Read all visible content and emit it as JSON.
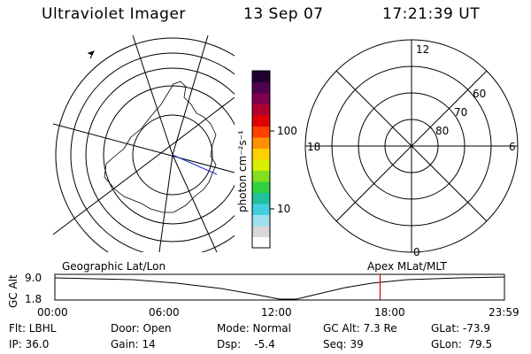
{
  "header": {
    "title": "Ultraviolet Imager",
    "date": "13 Sep 07",
    "time": "17:21:39 UT"
  },
  "colorbar": {
    "unit_label": "photon cm⁻²s⁻¹",
    "tick_100": "100",
    "tick_10": "10",
    "colors": [
      "#ffffff",
      "#d8d8d8",
      "#9fe0f0",
      "#40d0e0",
      "#20c0a0",
      "#30d040",
      "#80e020",
      "#d8f000",
      "#ffd000",
      "#ff9000",
      "#ff4000",
      "#e00000",
      "#b00030",
      "#800050",
      "#500050",
      "#200030"
    ]
  },
  "polar": {
    "mlt_labels": [
      "12",
      "18",
      "6",
      "0"
    ],
    "lat_labels": [
      "60",
      "70",
      "80"
    ]
  },
  "timeline": {
    "axis_label": "GC Alt",
    "y_top": "9.0",
    "y_bottom": "1.8",
    "left_label": "Geographic Lat/Lon",
    "right_label": "Apex MLat/MLT",
    "ticks": [
      "00:00",
      "06:00",
      "12:00",
      "18:00",
      "23:59"
    ],
    "current_time_fraction": 0.7234,
    "marker_color": "#cc0000"
  },
  "info": {
    "filter": "Flt: LBHL",
    "ip": "IP: 36.0",
    "door": "Door: Open",
    "gain": "Gain: 14",
    "mode": "Mode: Normal",
    "dsp": "Dsp:    -5.4",
    "gc_alt": "GC Alt: 7.3 Re",
    "seq": "Seq: 39",
    "glat": "GLat: -73.9",
    "glon": "GLon:  79.5"
  }
}
